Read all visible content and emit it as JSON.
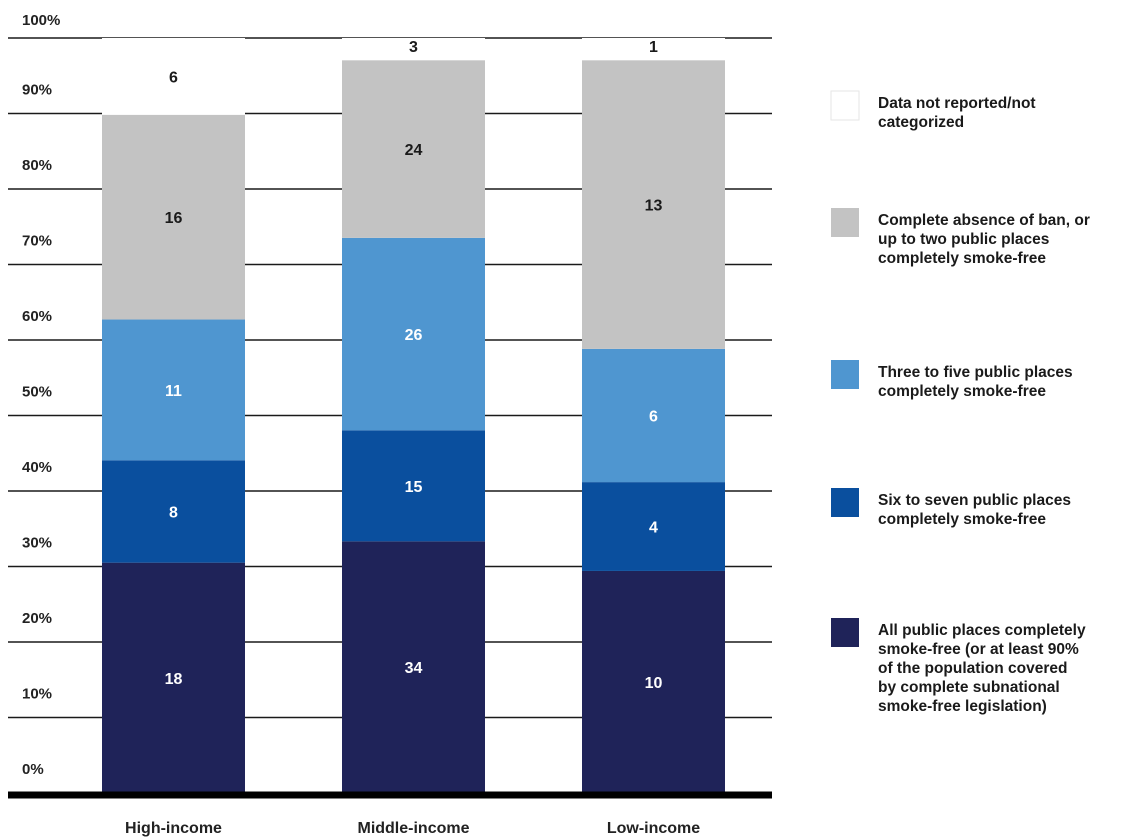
{
  "chart_data": {
    "type": "bar",
    "stacked": true,
    "normalized": true,
    "categories": [
      "High-income",
      "Middle-income",
      "Low-income"
    ],
    "series": [
      {
        "name": "All public places completely smoke-free (or at least 90% of the population covered by complete subnational smoke-free legislation)",
        "values": [
          18,
          34,
          10
        ],
        "color": "#1f2359"
      },
      {
        "name": "Six to seven public places completely smoke-free",
        "values": [
          8,
          15,
          4
        ],
        "color": "#0a4f9e"
      },
      {
        "name": "Three to five public places completely smoke-free",
        "values": [
          11,
          26,
          6
        ],
        "color": "#4f96d0"
      },
      {
        "name": "Complete absence of ban, or up to two public places completely smoke-free",
        "values": [
          16,
          24,
          13
        ],
        "color": "#c3c3c3"
      },
      {
        "name": "Data not reported/not categorized",
        "values": [
          6,
          3,
          1
        ],
        "color": "#ffffff"
      }
    ],
    "legend_lines": [
      [
        "Data not reported/not",
        "categorized"
      ],
      [
        "Complete absence of ban, or",
        "up to two public places",
        "completely smoke-free"
      ],
      [
        "Three to five public places",
        "completely smoke-free"
      ],
      [
        "Six to seven public places",
        "completely smoke-free"
      ],
      [
        "All public places completely",
        "smoke-free (or at least 90%",
        "of the population covered",
        "by complete subnational",
        "smoke-free legislation)"
      ]
    ],
    "y_ticks": [
      "0%",
      "10%",
      "20%",
      "30%",
      "40%",
      "50%",
      "60%",
      "70%",
      "80%",
      "90%",
      "100%"
    ],
    "ylim": [
      0,
      100
    ],
    "grid": true,
    "legend_position": "right"
  }
}
